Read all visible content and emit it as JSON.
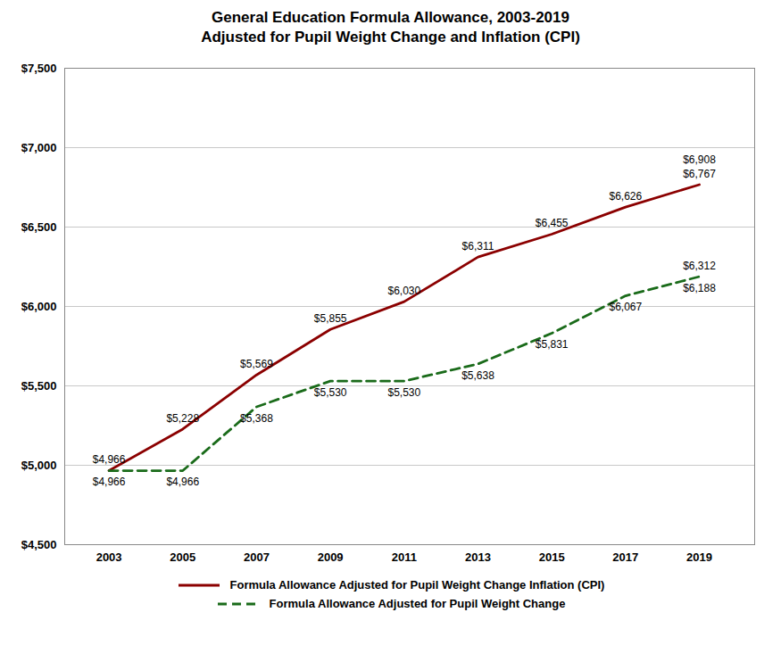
{
  "chart_data": {
    "type": "line",
    "title": "General Education Formula Allowance, 2003-2019",
    "subtitle": "Adjusted for Pupil Weight Change and Inflation (CPI)",
    "x": [
      2003,
      2005,
      2007,
      2009,
      2011,
      2013,
      2015,
      2017,
      2019
    ],
    "series": [
      {
        "name": "Formula Allowance Adjusted for Pupil Weight Change Inflation (CPI)",
        "color": "#8B0000",
        "line_style": "solid",
        "values": [
          4966,
          5228,
          5569,
          5855,
          6030,
          6311,
          6455,
          6626,
          6767
        ],
        "value_labels": [
          "$4,966",
          "$5,228",
          "$5,569",
          "$5,855",
          "$6,030",
          "$6,311",
          "$6,455",
          "$6,626",
          "$6,767"
        ],
        "annotations": [
          {
            "x": 2019,
            "text": "$6,908"
          }
        ]
      },
      {
        "name": "Formula Allowance Adjusted for Pupil Weight Change",
        "color": "#1A6B1A",
        "line_style": "dashed",
        "values": [
          4966,
          4966,
          5368,
          5530,
          5530,
          5638,
          5831,
          6067,
          6188
        ],
        "value_labels": [
          "$4,966",
          "$4,966",
          "$5,368",
          "$5,530",
          "$5,530",
          "$5,638",
          "$5,831",
          "$6,067",
          "$6,188"
        ],
        "annotations": [
          {
            "x": 2019,
            "text": "$6,312"
          }
        ]
      }
    ],
    "xlim": [
      2001.8,
      2020.5
    ],
    "xticks": [
      2003,
      2005,
      2007,
      2009,
      2011,
      2013,
      2015,
      2017,
      2019
    ],
    "ylim": [
      4500,
      7500
    ],
    "yticks": [
      {
        "value": 4500,
        "label": "$4,500"
      },
      {
        "value": 5000,
        "label": "$5,000"
      },
      {
        "value": 5500,
        "label": "$5,500"
      },
      {
        "value": 6000,
        "label": "$6,000"
      },
      {
        "value": 6500,
        "label": "$6,500"
      },
      {
        "value": 7000,
        "label": "$7,000"
      },
      {
        "value": 7500,
        "label": "$7,500"
      }
    ],
    "grid": true,
    "data_labels": true,
    "legend": "bottom"
  }
}
